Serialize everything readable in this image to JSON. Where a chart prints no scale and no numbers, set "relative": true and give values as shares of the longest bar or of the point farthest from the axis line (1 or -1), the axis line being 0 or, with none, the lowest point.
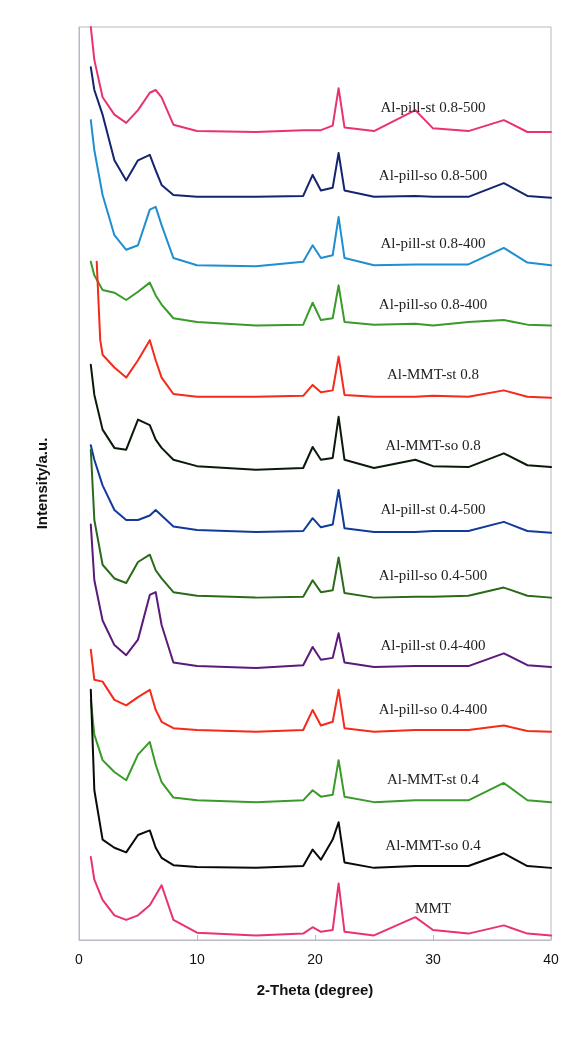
{
  "chart_data": {
    "type": "line",
    "relative": true,
    "xlabel": "2-Theta (degree)",
    "ylabel": "Intensity/a.u.",
    "xlim": [
      0,
      40
    ],
    "xticks": [
      0,
      10,
      20,
      30,
      40
    ],
    "grid": false,
    "legend": false,
    "marker": "none",
    "line_style": "solid",
    "x": [
      1,
      1.3,
      2,
      3,
      4,
      5,
      6,
      6.5,
      7,
      8,
      10,
      15,
      19,
      19.8,
      20.5,
      21.5,
      22,
      22.5,
      25,
      28.5,
      30,
      33,
      36,
      38,
      40
    ],
    "series": [
      {
        "name": "Al-pill-st 0.8-500",
        "color": "#e8336f",
        "values": [
          1.0,
          0.964,
          0.923,
          0.904,
          0.895,
          0.909,
          0.928,
          0.931,
          0.923,
          0.893,
          0.886,
          0.885,
          0.887,
          0.887,
          0.887,
          0.892,
          0.933,
          0.89,
          0.886,
          0.909,
          0.889,
          0.886,
          0.898,
          0.885,
          0.885
        ]
      },
      {
        "name": "Al-pill-so 0.8-500",
        "color": "#14246e",
        "values": [
          0.956,
          0.931,
          0.904,
          0.854,
          0.832,
          0.854,
          0.86,
          0.843,
          0.827,
          0.816,
          0.814,
          0.814,
          0.815,
          0.838,
          0.821,
          0.824,
          0.862,
          0.821,
          0.814,
          0.815,
          0.814,
          0.814,
          0.829,
          0.815,
          0.813
        ]
      },
      {
        "name": "Al-pill-st 0.8-400",
        "color": "#1f8fcf",
        "values": [
          0.898,
          0.865,
          0.816,
          0.772,
          0.756,
          0.761,
          0.8,
          0.803,
          0.783,
          0.747,
          0.739,
          0.738,
          0.743,
          0.761,
          0.747,
          0.75,
          0.792,
          0.747,
          0.739,
          0.74,
          0.74,
          0.74,
          0.758,
          0.742,
          0.739
        ]
      },
      {
        "name": "Al-pill-so 0.8-400",
        "color": "#3a9a2a",
        "values": [
          0.743,
          0.728,
          0.712,
          0.709,
          0.701,
          0.71,
          0.72,
          0.706,
          0.696,
          0.681,
          0.677,
          0.673,
          0.674,
          0.698,
          0.679,
          0.681,
          0.717,
          0.677,
          0.674,
          0.675,
          0.673,
          0.677,
          0.679,
          0.674,
          0.673
        ]
      },
      {
        "name": "Al-MMT-st 0.8",
        "color": "#f52a1a",
        "x": [
          1.5,
          1.8,
          2,
          3,
          4,
          5,
          6,
          6.5,
          7,
          8,
          10,
          15,
          19,
          19.8,
          20.5,
          21.5,
          22,
          22.5,
          25,
          28.5,
          30,
          33,
          36,
          38,
          40
        ],
        "values": [
          0.743,
          0.657,
          0.641,
          0.627,
          0.616,
          0.635,
          0.657,
          0.635,
          0.616,
          0.598,
          0.595,
          0.595,
          0.596,
          0.608,
          0.6,
          0.602,
          0.639,
          0.597,
          0.595,
          0.595,
          0.596,
          0.595,
          0.602,
          0.595,
          0.594
        ]
      },
      {
        "name": "Al-MMT-so 0.8",
        "color": "#0a1a0a",
        "values": [
          0.63,
          0.597,
          0.559,
          0.539,
          0.537,
          0.57,
          0.564,
          0.548,
          0.539,
          0.526,
          0.519,
          0.515,
          0.517,
          0.54,
          0.526,
          0.528,
          0.573,
          0.526,
          0.517,
          0.526,
          0.519,
          0.518,
          0.533,
          0.52,
          0.518
        ]
      },
      {
        "name": "Al-pill-st 0.4-500",
        "color": "#123a9a",
        "values": [
          0.542,
          0.526,
          0.498,
          0.471,
          0.46,
          0.46,
          0.465,
          0.471,
          0.465,
          0.453,
          0.449,
          0.447,
          0.448,
          0.462,
          0.452,
          0.455,
          0.493,
          0.451,
          0.447,
          0.447,
          0.448,
          0.448,
          0.458,
          0.448,
          0.446
        ]
      },
      {
        "name": "Al-pill-so 0.4-500",
        "color": "#2a6a1a",
        "values": [
          0.537,
          0.46,
          0.411,
          0.396,
          0.391,
          0.414,
          0.422,
          0.405,
          0.396,
          0.381,
          0.377,
          0.375,
          0.376,
          0.394,
          0.381,
          0.383,
          0.419,
          0.38,
          0.375,
          0.376,
          0.376,
          0.377,
          0.386,
          0.377,
          0.375
        ]
      },
      {
        "name": "Al-pill-st 0.4-400",
        "color": "#5a1a7a",
        "values": [
          0.455,
          0.394,
          0.35,
          0.323,
          0.312,
          0.329,
          0.378,
          0.381,
          0.345,
          0.304,
          0.3,
          0.298,
          0.301,
          0.321,
          0.307,
          0.309,
          0.336,
          0.304,
          0.299,
          0.3,
          0.3,
          0.3,
          0.314,
          0.301,
          0.299
        ]
      },
      {
        "name": "Al-pill-so 0.4-400",
        "color": "#f52a1a",
        "values": [
          0.318,
          0.285,
          0.283,
          0.263,
          0.257,
          0.266,
          0.274,
          0.252,
          0.239,
          0.232,
          0.23,
          0.228,
          0.23,
          0.252,
          0.235,
          0.239,
          0.274,
          0.232,
          0.228,
          0.23,
          0.23,
          0.23,
          0.235,
          0.229,
          0.228
        ]
      },
      {
        "name": "Al-MMT-st 0.4",
        "color": "#3a9a2a",
        "values": [
          0.263,
          0.225,
          0.197,
          0.184,
          0.175,
          0.203,
          0.217,
          0.192,
          0.173,
          0.156,
          0.153,
          0.151,
          0.153,
          0.164,
          0.157,
          0.159,
          0.197,
          0.157,
          0.151,
          0.153,
          0.153,
          0.153,
          0.172,
          0.153,
          0.151
        ]
      },
      {
        "name": "Al-MMT-so 0.4",
        "color": "#0a0a0a",
        "values": [
          0.274,
          0.164,
          0.11,
          0.101,
          0.096,
          0.115,
          0.12,
          0.101,
          0.09,
          0.082,
          0.08,
          0.079,
          0.081,
          0.099,
          0.088,
          0.11,
          0.129,
          0.085,
          0.079,
          0.081,
          0.081,
          0.081,
          0.095,
          0.081,
          0.079
        ]
      },
      {
        "name": "MMT",
        "color": "#e8336f",
        "values": [
          0.091,
          0.066,
          0.044,
          0.027,
          0.022,
          0.027,
          0.038,
          0.049,
          0.06,
          0.022,
          0.008,
          0.005,
          0.007,
          0.014,
          0.009,
          0.011,
          0.062,
          0.009,
          0.005,
          0.025,
          0.011,
          0.007,
          0.016,
          0.007,
          0.005
        ]
      }
    ]
  }
}
